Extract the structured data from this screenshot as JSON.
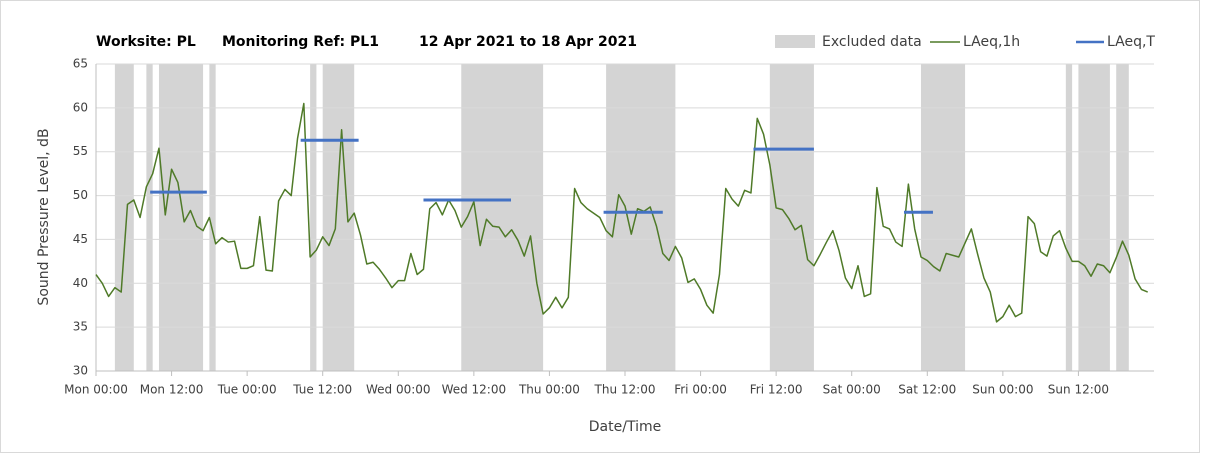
{
  "chart_data": {
    "type": "line",
    "title": [
      "Worksite: PL",
      "Monitoring Ref: PL1",
      "12 Apr 2021 to 18 Apr 2021"
    ],
    "x_label": "Date/Time",
    "y_label": "Sound Pressure Level, dB",
    "xlim": [
      0,
      168
    ],
    "xticks": [
      {
        "value": 0,
        "label": "Mon 00:00"
      },
      {
        "value": 12,
        "label": "Mon 12:00"
      },
      {
        "value": 24,
        "label": "Tue 00:00"
      },
      {
        "value": 36,
        "label": "Tue 12:00"
      },
      {
        "value": 48,
        "label": "Wed 00:00"
      },
      {
        "value": 60,
        "label": "Wed 12:00"
      },
      {
        "value": 72,
        "label": "Thu 00:00"
      },
      {
        "value": 84,
        "label": "Thu 12:00"
      },
      {
        "value": 96,
        "label": "Fri 00:00"
      },
      {
        "value": 108,
        "label": "Fri 12:00"
      },
      {
        "value": 120,
        "label": "Sat 00:00"
      },
      {
        "value": 132,
        "label": "Sat 12:00"
      },
      {
        "value": 144,
        "label": "Sun 00:00"
      },
      {
        "value": 156,
        "label": "Sun 12:00"
      }
    ],
    "ylim": [
      30,
      65
    ],
    "yticks": [
      30,
      35,
      40,
      45,
      50,
      55,
      60,
      65
    ],
    "grid": true,
    "excluded": {
      "name": "Excluded data",
      "color": "#d4d4d4",
      "ranges": [
        [
          3,
          6
        ],
        [
          8,
          9
        ],
        [
          10,
          17
        ],
        [
          18,
          19
        ],
        [
          34,
          35
        ],
        [
          36,
          41
        ],
        [
          58,
          71
        ],
        [
          81,
          92
        ],
        [
          107,
          114
        ],
        [
          131,
          138
        ],
        [
          154,
          155
        ],
        [
          156,
          161
        ],
        [
          162,
          164
        ]
      ]
    },
    "series": [
      {
        "name": "LAeq,1h",
        "color": "#4f7a28",
        "x": [
          0,
          1,
          2,
          3,
          4,
          5,
          6,
          7,
          8,
          9,
          10,
          11,
          12,
          13,
          14,
          15,
          16,
          17,
          18,
          19,
          20,
          21,
          22,
          23,
          24,
          25,
          26,
          27,
          28,
          29,
          30,
          31,
          32,
          33,
          34,
          35,
          36,
          37,
          38,
          39,
          40,
          41,
          42,
          43,
          44,
          45,
          46,
          47,
          48,
          49,
          50,
          51,
          52,
          53,
          54,
          55,
          56,
          57,
          58,
          59,
          60,
          61,
          62,
          63,
          64,
          65,
          66,
          67,
          68,
          69,
          70,
          71,
          72,
          73,
          74,
          75,
          76,
          77,
          78,
          79,
          80,
          81,
          82,
          83,
          84,
          85,
          86,
          87,
          88,
          89,
          90,
          91,
          92,
          93,
          94,
          95,
          96,
          97,
          98,
          99,
          100,
          101,
          102,
          103,
          104,
          105,
          106,
          107,
          108,
          109,
          110,
          111,
          112,
          113,
          114,
          115,
          116,
          117,
          118,
          119,
          120,
          121,
          122,
          123,
          124,
          125,
          126,
          127,
          128,
          129,
          130,
          131,
          132,
          133,
          134,
          135,
          136,
          137,
          138,
          139,
          140,
          141,
          142,
          143,
          144,
          145,
          146,
          147,
          148,
          149,
          150,
          151,
          152,
          153,
          154,
          155,
          156,
          157,
          158,
          159,
          160,
          161,
          162,
          163,
          164,
          165,
          166,
          167
        ],
        "values": [
          41,
          40,
          38.5,
          39.5,
          39,
          49,
          49.5,
          47.5,
          51,
          52.5,
          55.4,
          47.8,
          53,
          51.5,
          47,
          48.3,
          46.5,
          46,
          47.5,
          44.5,
          45.2,
          44.7,
          44.8,
          41.7,
          41.7,
          42,
          47.6,
          41.5,
          41.4,
          49.4,
          50.7,
          50,
          56.5,
          60.5,
          43,
          43.8,
          45.3,
          44.3,
          46.2,
          57.5,
          47,
          48,
          45.5,
          42.2,
          42.4,
          41.6,
          40.6,
          39.5,
          40.3,
          40.3,
          43.4,
          41,
          41.6,
          48.5,
          49.2,
          47.8,
          49.5,
          48.3,
          46.4,
          47.6,
          49.3,
          44.3,
          47.3,
          46.5,
          46.4,
          45.3,
          46.1,
          44.9,
          43.1,
          45.4,
          40,
          36.5,
          37.2,
          38.4,
          37.2,
          38.4,
          50.8,
          49.2,
          48.5,
          48,
          47.5,
          46,
          45.3,
          50.1,
          48.8,
          45.6,
          48.5,
          48.2,
          48.7,
          46.5,
          43.4,
          42.6,
          44.2,
          42.9,
          40.1,
          40.5,
          39.3,
          37.5,
          36.6,
          41,
          50.8,
          49.6,
          48.8,
          50.6,
          50.3,
          58.8,
          57,
          53.5,
          48.6,
          48.4,
          47.4,
          46.1,
          46.6,
          42.7,
          42,
          43.3,
          44.7,
          46,
          43.7,
          40.6,
          39.4,
          42,
          38.5,
          38.8,
          50.9,
          46.5,
          46.2,
          44.7,
          44.2,
          51.3,
          46.2,
          43,
          42.6,
          41.9,
          41.4,
          43.4,
          43.2,
          43,
          44.6,
          46.2,
          43.3,
          40.6,
          39,
          35.6,
          36.2,
          37.5,
          36.2,
          36.6,
          47.6,
          46.8,
          43.6,
          43.1,
          45.4,
          46,
          44,
          42.5,
          42.5,
          42,
          40.8,
          42.2,
          42,
          41.2,
          42.9,
          44.8,
          43.2,
          40.5,
          39.3,
          39
        ]
      }
    ],
    "periods": {
      "name": "LAeq,T",
      "color": "#4472c4",
      "segments": [
        {
          "start": 8.6,
          "end": 17.6,
          "value": 50.4
        },
        {
          "start": 32.5,
          "end": 41.7,
          "value": 56.3
        },
        {
          "start": 52,
          "end": 65.9,
          "value": 49.5
        },
        {
          "start": 80.6,
          "end": 90,
          "value": 48.1
        },
        {
          "start": 104.4,
          "end": 114,
          "value": 55.3
        },
        {
          "start": 128.3,
          "end": 132.9,
          "value": 48.1
        }
      ]
    }
  }
}
